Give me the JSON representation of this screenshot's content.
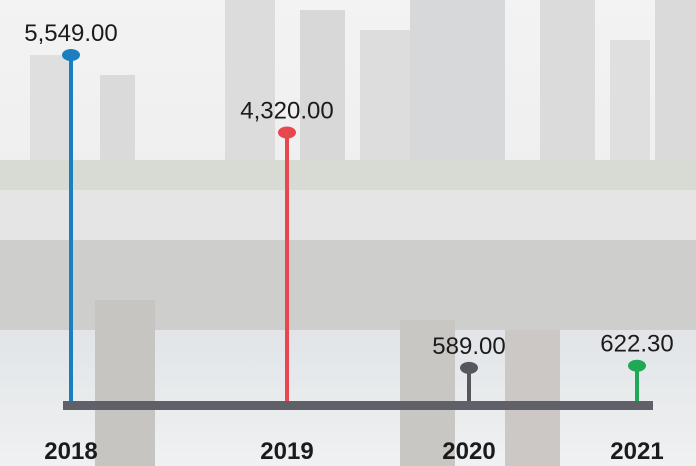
{
  "chart_data": {
    "type": "lollipop",
    "categories": [
      "2018",
      "2019",
      "2020",
      "2021"
    ],
    "values": [
      5549,
      4320,
      589,
      622.3
    ],
    "value_labels": [
      "5,549.00",
      "4,320.00",
      "589.00",
      "622.30"
    ],
    "colors": [
      "#1a7fc1",
      "#e8474f",
      "#55565e",
      "#1fa855"
    ],
    "baseline_color": "#5f6068"
  }
}
